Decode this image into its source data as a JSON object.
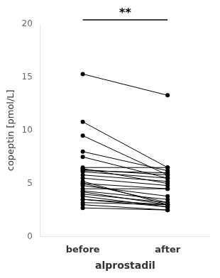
{
  "chart_data": {
    "type": "line",
    "categories": [
      "before",
      "after"
    ],
    "series": [
      {
        "values": [
          15.3,
          13.3
        ]
      },
      {
        "values": [
          10.8,
          6.5
        ]
      },
      {
        "values": [
          9.5,
          5.8
        ]
      },
      {
        "values": [
          8.0,
          6.2
        ]
      },
      {
        "values": [
          7.5,
          5.5
        ]
      },
      {
        "values": [
          6.5,
          6.5
        ]
      },
      {
        "values": [
          6.4,
          5.0
        ]
      },
      {
        "values": [
          6.3,
          5.8
        ]
      },
      {
        "values": [
          6.2,
          6.0
        ]
      },
      {
        "values": [
          6.1,
          5.5
        ]
      },
      {
        "values": [
          5.8,
          5.2
        ]
      },
      {
        "values": [
          5.5,
          4.8
        ]
      },
      {
        "values": [
          5.2,
          3.0
        ]
      },
      {
        "values": [
          5.0,
          4.5
        ]
      },
      {
        "values": [
          5.0,
          3.2
        ]
      },
      {
        "values": [
          4.8,
          3.8
        ]
      },
      {
        "values": [
          4.5,
          4.5
        ]
      },
      {
        "values": [
          4.3,
          3.5
        ]
      },
      {
        "values": [
          4.2,
          3.0
        ]
      },
      {
        "values": [
          4.0,
          3.2
        ]
      },
      {
        "values": [
          3.8,
          2.8
        ]
      },
      {
        "values": [
          3.5,
          2.8
        ]
      },
      {
        "values": [
          3.5,
          3.0
        ]
      },
      {
        "values": [
          3.2,
          3.0
        ]
      },
      {
        "values": [
          3.0,
          2.5
        ]
      },
      {
        "values": [
          2.7,
          2.5
        ]
      }
    ],
    "color": "#000000",
    "marker": "circle",
    "line_style": "solid",
    "xlabel": "alprostadil",
    "ylabel": "copeptin [pmol/L]",
    "ylim": [
      0,
      20
    ],
    "yticks": [
      0,
      5,
      10,
      15,
      20
    ],
    "grid": false,
    "annotations": [
      "**"
    ]
  }
}
